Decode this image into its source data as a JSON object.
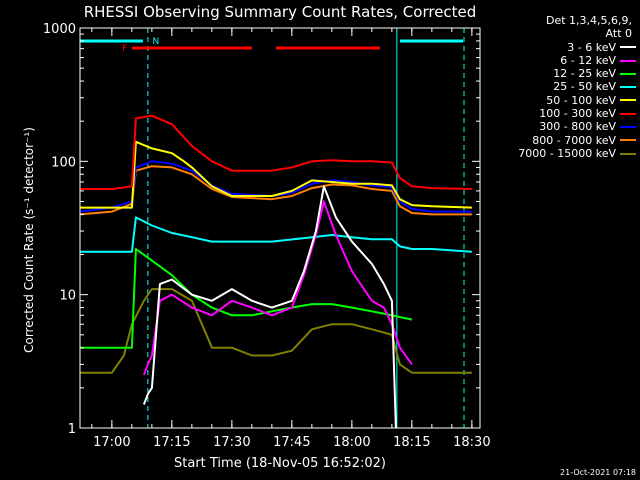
{
  "chart_data": {
    "type": "line",
    "title": "RHESSI Observing Summary Count Rates, Corrected",
    "xlabel": "Start Time (18-Nov-05 16:52:02)",
    "ylabel": "Corrected Count Rate (s⁻¹ detector⁻¹)",
    "timestamp": "21-Oct-2021 07:18",
    "y_scale": "log",
    "ylim": [
      1,
      1000
    ],
    "xlim_minutes_after_16_52_02": [
      0,
      100
    ],
    "x_ticks": [
      "17:00",
      "17:15",
      "17:30",
      "17:45",
      "18:00",
      "18:15",
      "18:30"
    ],
    "y_ticks": [
      "1",
      "10",
      "100",
      "1000"
    ],
    "legend_header": [
      "Det 1,3,4,5,6,9,",
      "Att 0"
    ],
    "flags": {
      "N_label": "N",
      "F_label": "F",
      "flare_intervals": [
        [
          "17:05",
          "17:35"
        ],
        [
          "17:41",
          "18:07"
        ]
      ],
      "night_start": "16:52",
      "night_end": "17:09",
      "day_start": "18:12"
    },
    "series": [
      {
        "name": "3 - 6 keV",
        "color": "#ffffff",
        "times": [
          "17:08",
          "17:09",
          "17:10",
          "17:12",
          "17:15",
          "17:20",
          "17:25",
          "17:30",
          "17:35",
          "17:40",
          "17:45",
          "17:48",
          "17:51",
          "17:53",
          "17:56",
          "18:00",
          "18:05",
          "18:08",
          "18:10",
          "18:11"
        ],
        "values": [
          1.5,
          1.8,
          2,
          12,
          13,
          10,
          9,
          11,
          9,
          8,
          9,
          15,
          30,
          65,
          38,
          25,
          17,
          12,
          9,
          1
        ]
      },
      {
        "name": "6 - 12 keV",
        "color": "#ff00ff",
        "times": [
          "17:08",
          "17:09",
          "17:10",
          "17:12",
          "17:15",
          "17:20",
          "17:25",
          "17:30",
          "17:35",
          "17:40",
          "17:45",
          "17:48",
          "17:51",
          "17:53",
          "17:56",
          "18:00",
          "18:05",
          "18:08",
          "18:10",
          "18:12",
          "18:15"
        ],
        "values": [
          2.5,
          3,
          3.5,
          9,
          10,
          8,
          7,
          9,
          8,
          7,
          8,
          14,
          28,
          50,
          28,
          15,
          9,
          8,
          6,
          4,
          3
        ]
      },
      {
        "name": "12 - 25 keV",
        "color": "#00ff00",
        "times": [
          "16:52",
          "17:00",
          "17:05",
          "17:06",
          "17:10",
          "17:15",
          "17:20",
          "17:25",
          "17:30",
          "17:35",
          "17:40",
          "17:45",
          "17:50",
          "17:55",
          "18:00",
          "18:05",
          "18:10",
          "18:15"
        ],
        "values": [
          4,
          4,
          4,
          22,
          18,
          14,
          10,
          8,
          7,
          7,
          7.5,
          8,
          8.5,
          8.5,
          8,
          7.5,
          7,
          6.5
        ]
      },
      {
        "name": "25 - 50 keV",
        "color": "#00ffff",
        "times": [
          "16:52",
          "17:00",
          "17:05",
          "17:06",
          "17:10",
          "17:15",
          "17:20",
          "17:25",
          "17:30",
          "17:40",
          "17:50",
          "17:55",
          "18:00",
          "18:05",
          "18:10",
          "18:12",
          "18:15",
          "18:20",
          "18:30"
        ],
        "values": [
          21,
          21,
          21,
          38,
          33,
          29,
          27,
          25,
          25,
          25,
          27,
          28,
          27,
          26,
          26,
          23,
          22,
          22,
          21
        ]
      },
      {
        "name": "50 - 100 keV",
        "color": "#ffff00",
        "times": [
          "16:52",
          "17:00",
          "17:05",
          "17:06",
          "17:10",
          "17:15",
          "17:18",
          "17:20",
          "17:25",
          "17:30",
          "17:40",
          "17:45",
          "17:50",
          "17:55",
          "18:00",
          "18:05",
          "18:10",
          "18:12",
          "18:15",
          "18:20",
          "18:30"
        ],
        "values": [
          45,
          45,
          45,
          140,
          125,
          115,
          100,
          90,
          65,
          55,
          55,
          60,
          72,
          70,
          68,
          68,
          66,
          52,
          47,
          46,
          45
        ]
      },
      {
        "name": "100 - 300 keV",
        "color": "#ff0000",
        "times": [
          "16:52",
          "17:00",
          "17:05",
          "17:06",
          "17:10",
          "17:15",
          "17:20",
          "17:25",
          "17:30",
          "17:40",
          "17:45",
          "17:50",
          "17:55",
          "18:00",
          "18:05",
          "18:10",
          "18:12",
          "18:15",
          "18:20",
          "18:30"
        ],
        "values": [
          62,
          62,
          65,
          210,
          220,
          190,
          130,
          100,
          85,
          85,
          90,
          100,
          102,
          100,
          100,
          98,
          75,
          65,
          63,
          62
        ]
      },
      {
        "name": "300 - 800 keV",
        "color": "#0000ff",
        "times": [
          "16:52",
          "17:00",
          "17:05",
          "17:06",
          "17:10",
          "17:15",
          "17:20",
          "17:25",
          "17:30",
          "17:40",
          "17:45",
          "17:50",
          "17:55",
          "18:00",
          "18:05",
          "18:10",
          "18:12",
          "18:15",
          "18:20",
          "18:30"
        ],
        "values": [
          42,
          45,
          50,
          90,
          100,
          96,
          85,
          66,
          57,
          55,
          58,
          68,
          72,
          70,
          66,
          64,
          50,
          44,
          42,
          42
        ]
      },
      {
        "name": "800 - 7000 keV",
        "color": "#ff7f00",
        "times": [
          "16:52",
          "17:00",
          "17:05",
          "17:06",
          "17:10",
          "17:15",
          "17:20",
          "17:25",
          "17:30",
          "17:40",
          "17:45",
          "17:50",
          "17:55",
          "18:00",
          "18:05",
          "18:10",
          "18:12",
          "18:15",
          "18:20",
          "18:30"
        ],
        "values": [
          40,
          42,
          48,
          85,
          92,
          90,
          80,
          62,
          54,
          52,
          55,
          63,
          67,
          66,
          62,
          60,
          46,
          41,
          40,
          40
        ]
      },
      {
        "name": "7000 - 15000 keV",
        "color": "#808000",
        "times": [
          "16:52",
          "17:00",
          "17:03",
          "17:05",
          "17:08",
          "17:10",
          "17:15",
          "17:20",
          "17:25",
          "17:30",
          "17:35",
          "17:40",
          "17:45",
          "17:50",
          "17:55",
          "18:00",
          "18:05",
          "18:10",
          "18:12",
          "18:15",
          "18:20",
          "18:30"
        ],
        "values": [
          2.6,
          2.6,
          3.5,
          6,
          9,
          11,
          11,
          9,
          4,
          4,
          3.5,
          3.5,
          3.8,
          5.5,
          6,
          6,
          5.5,
          5,
          3,
          2.6,
          2.6,
          2.6
        ]
      }
    ]
  }
}
